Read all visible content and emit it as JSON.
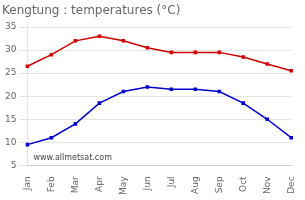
{
  "chart_data": {
    "type": "line",
    "title": "Kengtung : temperatures (°C)",
    "categories": [
      "Jan",
      "Feb",
      "Mar",
      "Apr",
      "May",
      "Jun",
      "Jul",
      "Aug",
      "Sep",
      "Oct",
      "Nov",
      "Dec"
    ],
    "series": [
      {
        "color": "#cc0000",
        "marker": "square",
        "values": [
          26.5,
          29.0,
          32.0,
          33.0,
          32.0,
          30.5,
          29.5,
          29.5,
          29.5,
          28.5,
          27.0,
          25.5
        ]
      },
      {
        "color": "#0000cc",
        "marker": "square",
        "values": [
          9.5,
          11.0,
          14.0,
          18.5,
          21.0,
          22.0,
          21.5,
          21.5,
          21.0,
          18.5,
          15.0,
          11.0
        ]
      }
    ],
    "ylim": [
      5,
      36
    ],
    "yticks": [
      5,
      10,
      15,
      20,
      25,
      30,
      35
    ],
    "grid": true,
    "annotations": [
      "www.allmetsat.com"
    ]
  }
}
